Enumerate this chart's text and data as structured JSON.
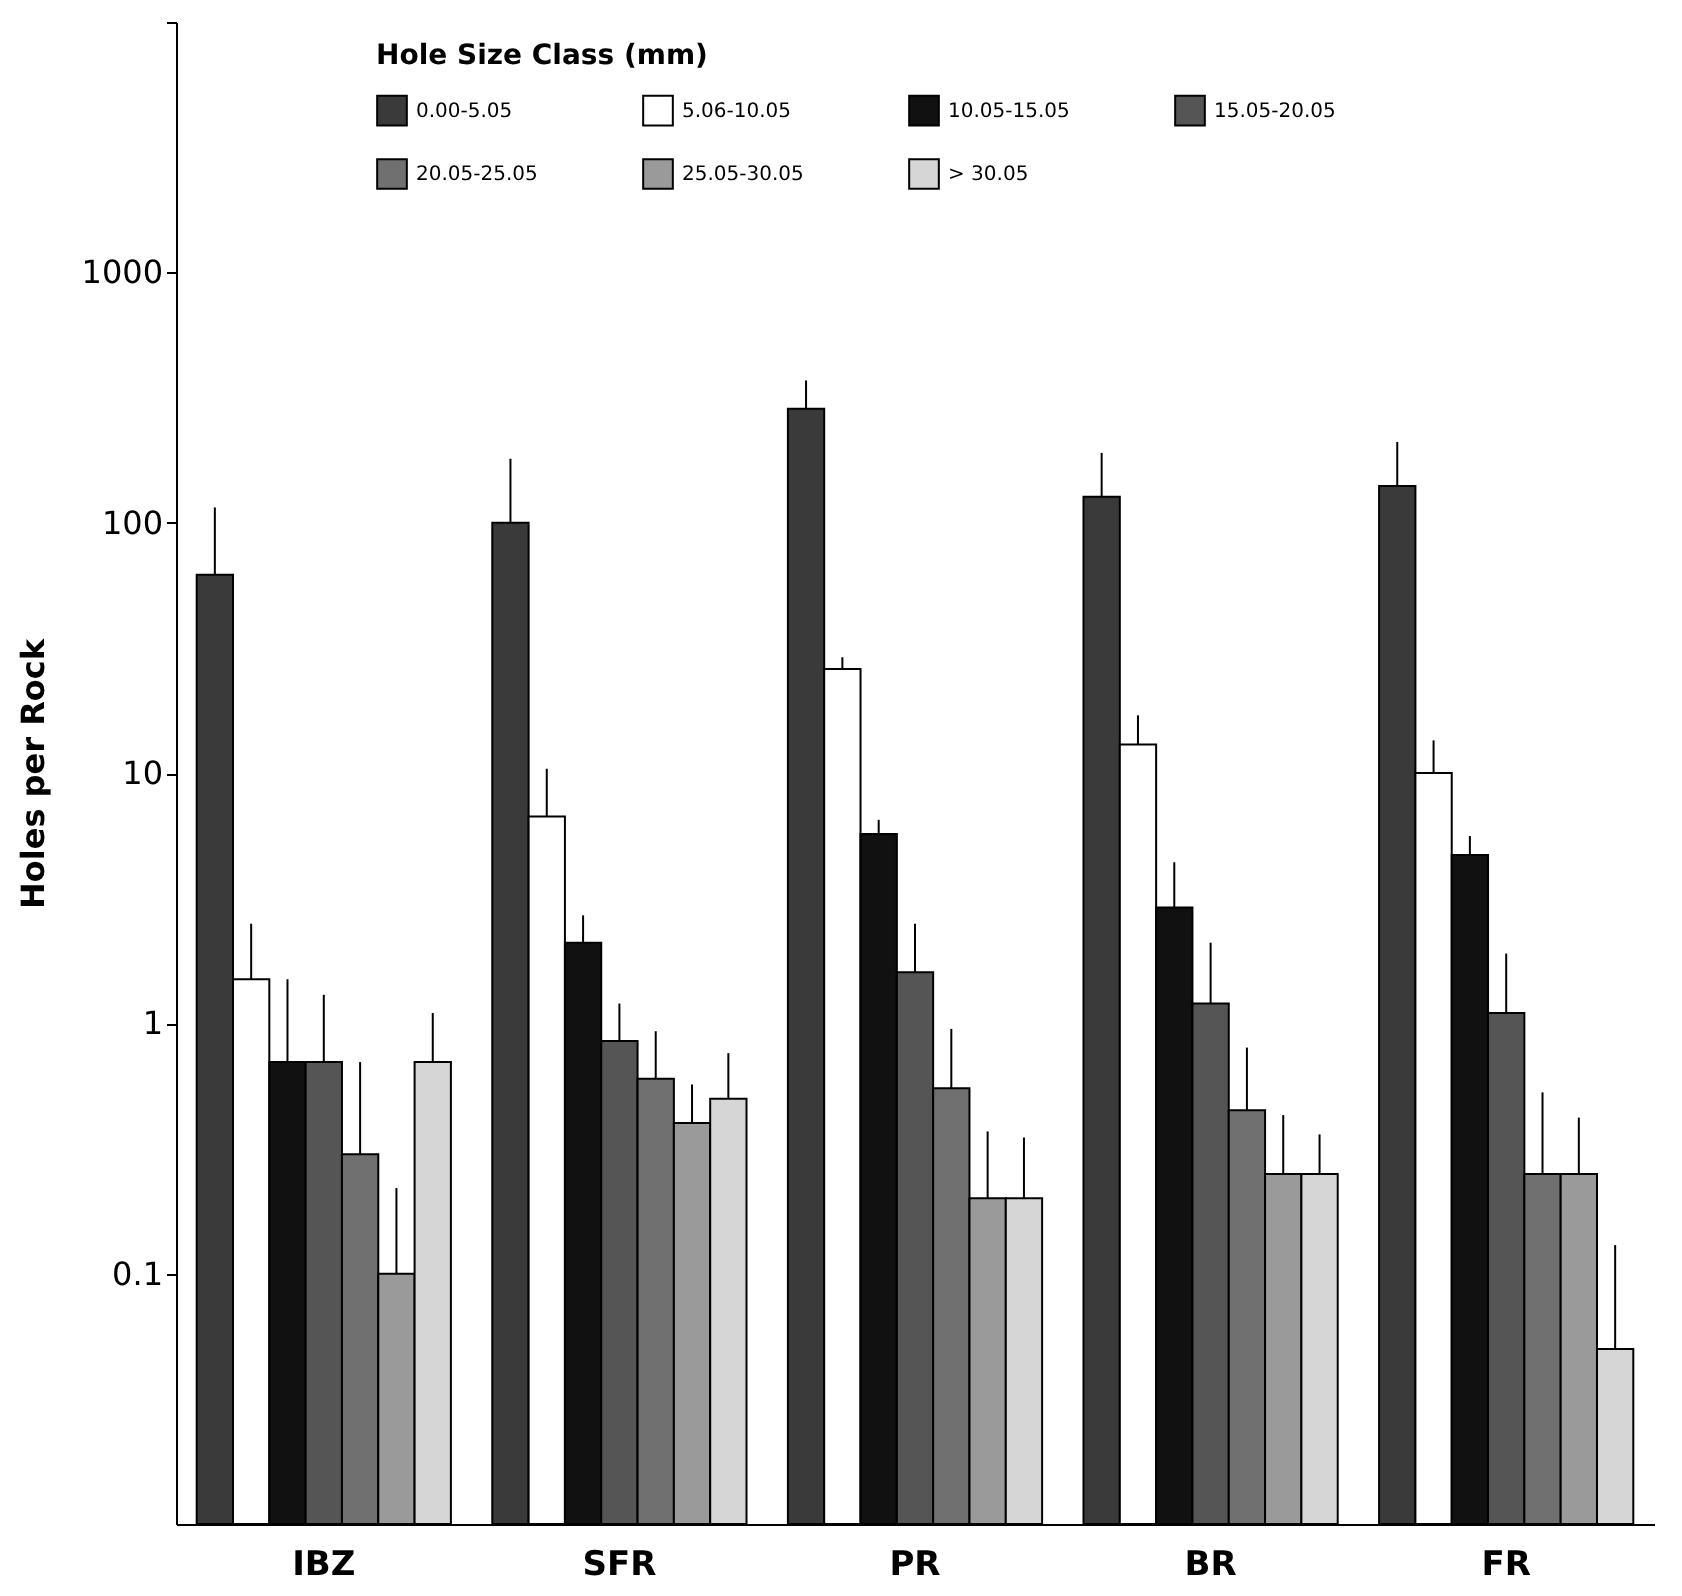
{
  "chart_data": {
    "type": "bar",
    "ylabel": "Holes per Rock",
    "legend_title": "Hole Size Class (mm)",
    "categories": [
      "IBZ",
      "SFR",
      "PR",
      "BR",
      "FR"
    ],
    "series": [
      {
        "name": "0.00-5.05",
        "color": "#3a3a3a",
        "values": [
          62,
          100,
          285,
          127,
          140
        ],
        "errors": [
          [
            62,
            115
          ],
          [
            100,
            180
          ],
          [
            285,
            370
          ],
          [
            127,
            190
          ],
          [
            140,
            210
          ]
        ]
      },
      {
        "name": "5.06-10.05",
        "color": "#ffffff",
        "values": [
          1.5,
          6.7,
          26,
          13,
          10
        ],
        "errors": [
          [
            1.5,
            2.5
          ],
          [
            6.7,
            10.4
          ],
          [
            26,
            29
          ],
          [
            13,
            17
          ],
          [
            10,
            13.5
          ]
        ]
      },
      {
        "name": "10.05-15.05",
        "color": "#111111",
        "values": [
          0.7,
          2.1,
          5.7,
          2.9,
          4.7
        ],
        "errors": [
          [
            0.7,
            1.5
          ],
          [
            2.1,
            2.7
          ],
          [
            5.7,
            6.5
          ],
          [
            2.9,
            4.4
          ],
          [
            4.7,
            5.6
          ]
        ]
      },
      {
        "name": "15.05-20.05",
        "color": "#555555",
        "values": [
          0.7,
          0.85,
          1.6,
          1.2,
          1.1
        ],
        "errors": [
          [
            0.7,
            1.3
          ],
          [
            0.85,
            1.2
          ],
          [
            1.6,
            2.5
          ],
          [
            1.2,
            2.1
          ],
          [
            1.1,
            1.9
          ]
        ]
      },
      {
        "name": "20.05-25.05",
        "color": "#707070",
        "values": [
          0.3,
          0.6,
          0.55,
          0.45,
          0.25
        ],
        "errors": [
          [
            0.3,
            0.7
          ],
          [
            0.6,
            0.93
          ],
          [
            0.55,
            0.95
          ],
          [
            0.45,
            0.8
          ],
          [
            0.25,
            0.53
          ]
        ]
      },
      {
        "name": "25.05-30.05",
        "color": "#9a9a9a",
        "values": [
          0.1,
          0.4,
          0.2,
          0.25,
          0.25
        ],
        "errors": [
          [
            0.1,
            0.22
          ],
          [
            0.4,
            0.57
          ],
          [
            0.2,
            0.37
          ],
          [
            0.25,
            0.43
          ],
          [
            0.25,
            0.42
          ]
        ]
      },
      {
        "name": "> 30.05",
        "color": "#d6d6d6",
        "values": [
          0.7,
          0.5,
          0.2,
          0.25,
          0.05
        ],
        "errors": [
          [
            0.7,
            1.1
          ],
          [
            0.5,
            0.76
          ],
          [
            0.2,
            0.35
          ],
          [
            0.25,
            0.36
          ],
          [
            0.05,
            0.13
          ]
        ]
      }
    ],
    "log": "y",
    "ylim": [
      0.01,
      10000
    ],
    "yticks": [
      0.1,
      1,
      10,
      100,
      1000,
      {
        "value": 10000,
        "label": null
      }
    ],
    "legend": "top",
    "grid": false
  }
}
